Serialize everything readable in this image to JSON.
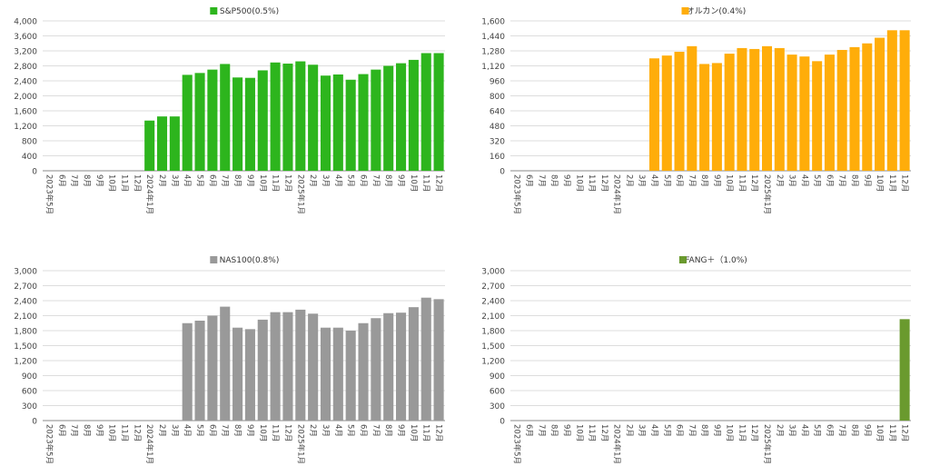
{
  "chart_data": [
    {
      "type": "bar",
      "legend": "S&P500(0.5%)",
      "legend_position": "top-center",
      "color": "#2db51d",
      "grid": true,
      "ylim": [
        0,
        4000
      ],
      "yticks": [
        "0",
        "400",
        "800",
        "1,200",
        "1,600",
        "2,000",
        "2,400",
        "2,800",
        "3,200",
        "3,600",
        "4,000"
      ],
      "categories": [
        "2023年5月",
        "6月",
        "7月",
        "8月",
        "9月",
        "10月",
        "11月",
        "12月",
        "2024年1月",
        "2月",
        "3月",
        "4月",
        "5月",
        "6月",
        "7月",
        "8月",
        "9月",
        "10月",
        "11月",
        "12月",
        "2025年1月",
        "2月",
        "3月",
        "4月",
        "5月",
        "6月",
        "7月",
        "8月",
        "9月",
        "10月",
        "11月",
        "12月"
      ],
      "values": [
        0,
        0,
        0,
        0,
        0,
        0,
        0,
        0,
        1340,
        1450,
        1450,
        2560,
        2610,
        2700,
        2850,
        2490,
        2480,
        2680,
        2890,
        2860,
        2920,
        2830,
        2540,
        2570,
        2430,
        2580,
        2700,
        2800,
        2870,
        2960,
        3140,
        3140
      ]
    },
    {
      "type": "bar",
      "legend": "オルカン(0.4%)",
      "legend_position": "top-center",
      "color": "#ffad0a",
      "grid": true,
      "ylim": [
        0,
        1600
      ],
      "yticks": [
        "0",
        "160",
        "320",
        "480",
        "640",
        "800",
        "960",
        "1,120",
        "1,280",
        "1,440",
        "1,600"
      ],
      "categories": [
        "2023年5月",
        "6月",
        "7月",
        "8月",
        "9月",
        "10月",
        "11月",
        "12月",
        "2024年1月",
        "2月",
        "3月",
        "4月",
        "5月",
        "6月",
        "7月",
        "8月",
        "9月",
        "10月",
        "11月",
        "12月",
        "2025年1月",
        "2月",
        "3月",
        "4月",
        "5月",
        "6月",
        "7月",
        "8月",
        "9月",
        "10月",
        "11月",
        "12月"
      ],
      "values": [
        0,
        0,
        0,
        0,
        0,
        0,
        0,
        0,
        0,
        0,
        0,
        1200,
        1230,
        1270,
        1330,
        1140,
        1150,
        1250,
        1310,
        1300,
        1330,
        1310,
        1240,
        1220,
        1170,
        1240,
        1290,
        1320,
        1360,
        1420,
        1500,
        1500
      ]
    },
    {
      "type": "bar",
      "legend": "NAS100(0.8%)",
      "legend_position": "top-center",
      "color": "#999999",
      "grid": true,
      "ylim": [
        0,
        3000
      ],
      "yticks": [
        "0",
        "300",
        "600",
        "900",
        "1,200",
        "1,500",
        "1,800",
        "2,100",
        "2,400",
        "2,700",
        "3,000"
      ],
      "categories": [
        "2023年5月",
        "6月",
        "7月",
        "8月",
        "9月",
        "10月",
        "11月",
        "12月",
        "2024年1月",
        "2月",
        "3月",
        "4月",
        "5月",
        "6月",
        "7月",
        "8月",
        "9月",
        "10月",
        "11月",
        "12月",
        "2025年1月",
        "2月",
        "3月",
        "4月",
        "5月",
        "6月",
        "7月",
        "8月",
        "9月",
        "10月",
        "11月",
        "12月"
      ],
      "values": [
        0,
        0,
        0,
        0,
        0,
        0,
        0,
        0,
        0,
        0,
        0,
        1950,
        2000,
        2100,
        2280,
        1860,
        1830,
        2020,
        2170,
        2170,
        2220,
        2140,
        1860,
        1860,
        1800,
        1950,
        2050,
        2150,
        2160,
        2270,
        2460,
        2430
      ]
    },
    {
      "type": "bar",
      "legend": "FANG＋（1.0%)",
      "legend_position": "top-center",
      "color": "#6a9a2e",
      "grid": true,
      "ylim": [
        0,
        3000
      ],
      "yticks": [
        "0",
        "300",
        "600",
        "900",
        "1,200",
        "1,500",
        "1,800",
        "2,100",
        "2,400",
        "2,700",
        "3,000"
      ],
      "categories": [
        "2023年5月",
        "6月",
        "7月",
        "8月",
        "9月",
        "10月",
        "11月",
        "12月",
        "2024年1月",
        "2月",
        "3月",
        "4月",
        "5月",
        "6月",
        "7月",
        "8月",
        "9月",
        "10月",
        "11月",
        "12月",
        "2025年1月",
        "2月",
        "3月",
        "4月",
        "5月",
        "6月",
        "7月",
        "8月",
        "9月",
        "10月",
        "11月",
        "12月"
      ],
      "values": [
        0,
        0,
        0,
        0,
        0,
        0,
        0,
        0,
        0,
        0,
        0,
        0,
        0,
        0,
        0,
        0,
        0,
        0,
        0,
        0,
        0,
        0,
        0,
        0,
        0,
        0,
        0,
        0,
        0,
        0,
        0,
        2030
      ]
    }
  ]
}
